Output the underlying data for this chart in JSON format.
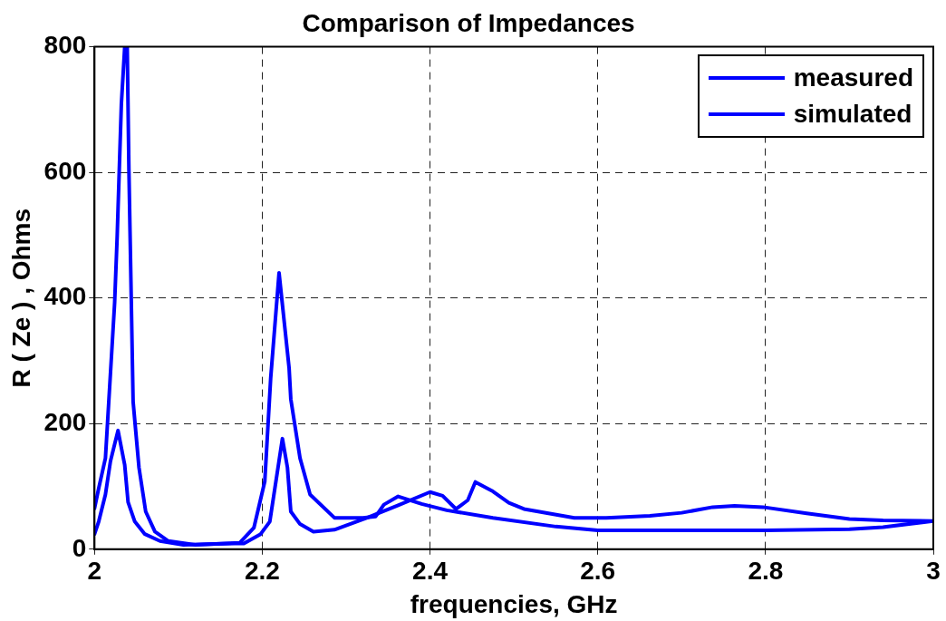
{
  "chart_data": {
    "type": "line",
    "title": "Comparison of Impedances",
    "xlabel": "frequencies, GHz",
    "ylabel": "R ( Ze ) , Ohms",
    "xlim": [
      2,
      3
    ],
    "xticks": [
      2,
      2.2,
      2.4,
      2.6,
      2.8,
      3
    ],
    "ylim": [
      0,
      800
    ],
    "yticks": [
      0,
      200,
      400,
      600,
      800
    ],
    "grid": true,
    "legend": "top right",
    "line_style": "solid",
    "marker": "none",
    "series": [
      {
        "name": "measured",
        "color": "#0000ff",
        "x": [
          2.0,
          2.005,
          2.013,
          2.017,
          2.024,
          2.027,
          2.032,
          2.036,
          2.039,
          2.041,
          2.046,
          2.053,
          2.061,
          2.072,
          2.088,
          2.12,
          2.173,
          2.19,
          2.203,
          2.21,
          2.22,
          2.232,
          2.234,
          2.245,
          2.257,
          2.286,
          2.32,
          2.335,
          2.345,
          2.362,
          2.39,
          2.42,
          2.475,
          2.55,
          2.6,
          2.7,
          2.8,
          2.9,
          2.94,
          3.0
        ],
        "values": [
          65,
          97,
          145,
          235,
          393,
          498,
          709,
          800,
          800,
          604,
          235,
          130,
          60,
          28,
          13,
          7,
          10,
          34,
          108,
          272,
          440,
          288,
          239,
          145,
          87,
          50,
          50,
          52,
          71,
          84,
          72,
          62,
          50,
          36,
          30,
          30,
          30,
          32,
          35,
          45
        ]
      },
      {
        "name": "simulated",
        "color": "#0000ff",
        "x": [
          2.0,
          2.005,
          2.013,
          2.019,
          2.028,
          2.036,
          2.04,
          2.048,
          2.06,
          2.078,
          2.106,
          2.161,
          2.178,
          2.198,
          2.209,
          2.215,
          2.224,
          2.23,
          2.234,
          2.245,
          2.261,
          2.286,
          2.325,
          2.362,
          2.4,
          2.415,
          2.431,
          2.445,
          2.454,
          2.475,
          2.494,
          2.512,
          2.572,
          2.61,
          2.662,
          2.7,
          2.737,
          2.763,
          2.797,
          2.849,
          2.9,
          2.94,
          3.0
        ],
        "values": [
          24,
          44,
          87,
          140,
          189,
          134,
          75,
          44,
          24,
          13,
          7,
          9,
          9,
          24,
          44,
          97,
          176,
          130,
          60,
          40,
          28,
          31,
          50,
          70,
          91,
          85,
          64,
          78,
          107,
          92,
          74,
          64,
          50,
          50,
          53,
          58,
          67,
          69,
          67,
          57,
          48,
          46,
          45
        ]
      }
    ]
  }
}
